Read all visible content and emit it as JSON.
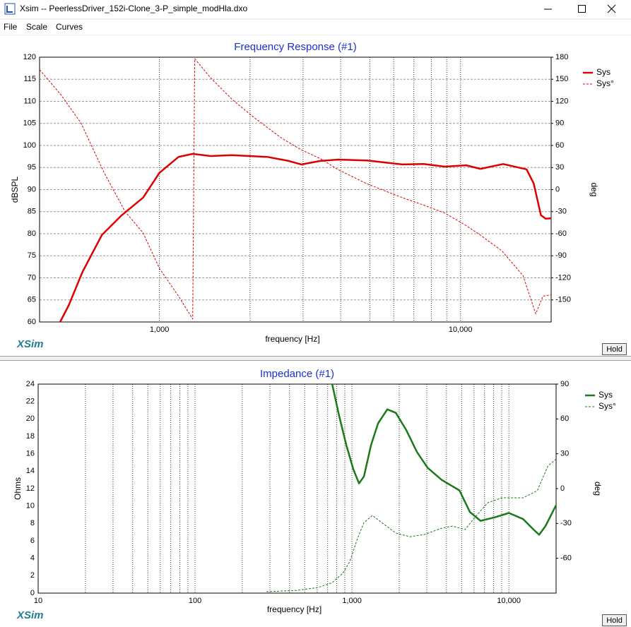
{
  "window": {
    "title": "Xsim -- PeerlessDriver_152i-Clone_3-P_simple_modHla.dxo",
    "menu": [
      "File",
      "Scale",
      "Curves"
    ]
  },
  "chart_data": [
    {
      "type": "line",
      "title": "Frequency Response (#1)",
      "logo": "XSim",
      "button": "Hold",
      "x_label": "frequency [Hz]",
      "y_label": "dBSPL",
      "y2_label": "deg",
      "xscale": "log",
      "xlim": [
        400,
        20000
      ],
      "xticks": [
        {
          "value": 1000,
          "label": "1,000"
        },
        {
          "value": 10000,
          "label": "10,000"
        }
      ],
      "x_minor_grid": [
        2000,
        3000,
        4000,
        5000,
        6000,
        7000,
        8000,
        9000
      ],
      "ylim": [
        60,
        120
      ],
      "yticks": [
        60,
        65,
        70,
        75,
        80,
        85,
        90,
        95,
        100,
        105,
        110,
        115,
        120
      ],
      "y2lim": [
        -180,
        180
      ],
      "y2ticks": [
        -150,
        -120,
        -90,
        -60,
        -30,
        0,
        30,
        60,
        90,
        120,
        150,
        180
      ],
      "grid": "both",
      "legend": "upper right",
      "series": [
        {
          "name": "Sys",
          "color": "#dd0000",
          "style": "solid",
          "x": [
            468,
            500,
            556,
            644,
            750,
            883,
            1000,
            1158,
            1291,
            1479,
            1740,
            2282,
            2687,
            2963,
            3428,
            3929,
            4883,
            6408,
            7539,
            8872,
            10440,
            11650,
            13860,
            16570,
            17500,
            18490,
            19190,
            20000
          ],
          "values": [
            60,
            63.8,
            71.4,
            79.7,
            84.2,
            88.2,
            93.8,
            97.4,
            98.1,
            97.6,
            97.8,
            97.4,
            96.5,
            95.7,
            96.5,
            96.8,
            96.6,
            95.7,
            95.8,
            95.2,
            95.5,
            94.7,
            95.8,
            94.6,
            91.4,
            84.2,
            83.4,
            83.5
          ]
        },
        {
          "name": "Sys°",
          "color": "#dd0000",
          "style": "dashed",
          "axis": "y2",
          "x": [
            400,
            473,
            550,
            655,
            770,
            883,
            1000,
            1158,
            1290,
            1310,
            1479,
            1740,
            2048,
            2544,
            2963,
            3428,
            3929,
            4883,
            6408,
            7539,
            8872,
            10440,
            11650,
            13700,
            16130,
            17780,
            18780,
            20000
          ],
          "values": [
            163,
            128,
            90,
            23,
            -30,
            -59,
            -107,
            -145,
            -176,
            178,
            152,
            123,
            99,
            70,
            54,
            42,
            27,
            8,
            -11,
            -21,
            -32,
            -49,
            -62,
            -83,
            -117,
            -169,
            -145,
            -143
          ]
        }
      ]
    },
    {
      "type": "line",
      "title": "Impedance (#1)",
      "logo": "XSim",
      "button": "Hold",
      "x_label": "frequency [Hz]",
      "y_label": "Ohms",
      "y2_label": "deg",
      "xscale": "log",
      "xlim": [
        10,
        20000
      ],
      "xticks": [
        10,
        100,
        {
          "value": 1000,
          "label": "1,000"
        },
        {
          "value": 10000,
          "label": "10,000"
        }
      ],
      "x_minor_grid": [
        20,
        30,
        40,
        50,
        60,
        70,
        80,
        90,
        200,
        300,
        400,
        500,
        600,
        700,
        800,
        900,
        2000,
        3000,
        4000,
        5000,
        6000,
        7000,
        8000,
        9000
      ],
      "ylim": [
        0,
        24
      ],
      "yticks": [
        0,
        2,
        4,
        6,
        8,
        10,
        12,
        14,
        16,
        18,
        20,
        22,
        24
      ],
      "y2lim": [
        -90,
        90
      ],
      "y2ticks": [
        -60,
        -30,
        0,
        30,
        60,
        90
      ],
      "grid": "x",
      "legend": "upper right",
      "series": [
        {
          "name": "Sys",
          "color": "#1a7a1a",
          "style": "solid",
          "x": [
            748,
            830,
            920,
            1021,
            1109,
            1193,
            1323,
            1467,
            1679,
            1903,
            2221,
            2595,
            3033,
            3731,
            4840,
            5650,
            6600,
            8130,
            10000,
            12330,
            14370,
            15600,
            17120,
            20000
          ],
          "values": [
            24,
            20.3,
            17,
            14.2,
            12.6,
            13.4,
            17,
            19.5,
            21.1,
            20.7,
            18.7,
            16.2,
            14.4,
            13,
            11.8,
            9.3,
            8.3,
            8.7,
            9.2,
            8.5,
            7.3,
            6.7,
            7.7,
            10.1
          ]
        },
        {
          "name": "Sys°",
          "color": "#1a7a1a",
          "style": "dashed",
          "axis": "y2",
          "x": [
            285,
            445,
            608,
            748,
            874,
            969,
            1075,
            1193,
            1351,
            1546,
            1903,
            2340,
            2880,
            3731,
            4367,
            5260,
            5950,
            7330,
            9020,
            12330,
            15160,
            17720,
            20000
          ],
          "values": [
            -88.8,
            -87.6,
            -85.2,
            -81,
            -73,
            -62.7,
            -44.4,
            -29.2,
            -23.1,
            -29.2,
            -38.3,
            -41.4,
            -39.6,
            -34.1,
            -32.3,
            -35.3,
            -26.2,
            -12.2,
            -7.9,
            -7.9,
            -1.8,
            19.4,
            25.5
          ]
        }
      ]
    }
  ]
}
